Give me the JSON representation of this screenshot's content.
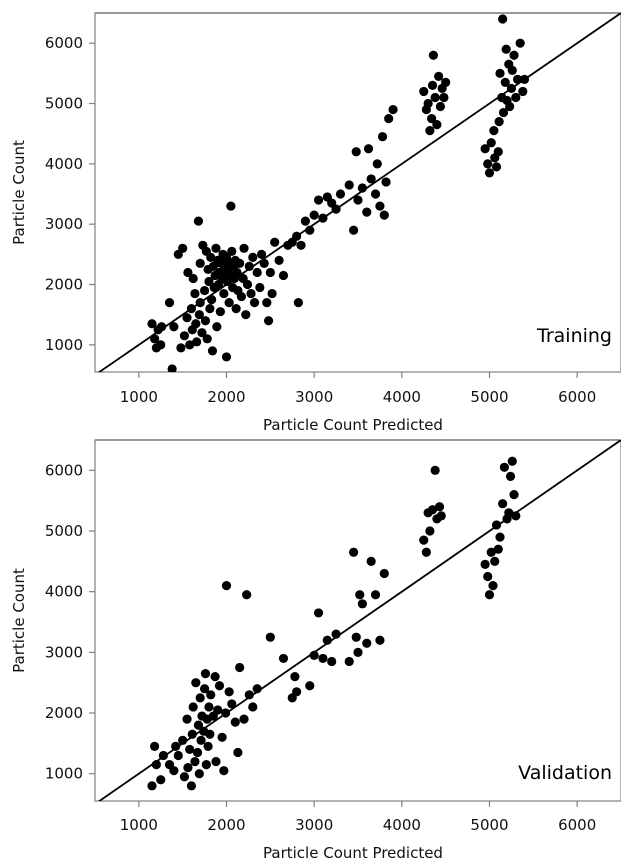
{
  "chart_data": [
    {
      "type": "scatter",
      "panel_label": "Training",
      "xlabel": "Particle Count Predicted",
      "ylabel": "Particle Count",
      "xlim": [
        500,
        6500
      ],
      "ylim": [
        550,
        6500
      ],
      "xticks": [
        1000,
        2000,
        3000,
        4000,
        5000,
        6000
      ],
      "yticks": [
        1000,
        2000,
        3000,
        4000,
        5000,
        6000
      ],
      "reference_line": "y = x",
      "points": [
        [
          1150,
          1350
        ],
        [
          1180,
          1100
        ],
        [
          1200,
          950
        ],
        [
          1220,
          1250
        ],
        [
          1250,
          1000
        ],
        [
          1260,
          1300
        ],
        [
          1350,
          1700
        ],
        [
          1380,
          600
        ],
        [
          1400,
          1300
        ],
        [
          1450,
          2500
        ],
        [
          1480,
          950
        ],
        [
          1500,
          2600
        ],
        [
          1520,
          1150
        ],
        [
          1550,
          1450
        ],
        [
          1560,
          2200
        ],
        [
          1580,
          1000
        ],
        [
          1600,
          1600
        ],
        [
          1610,
          1250
        ],
        [
          1620,
          2100
        ],
        [
          1640,
          1850
        ],
        [
          1650,
          1350
        ],
        [
          1660,
          1050
        ],
        [
          1680,
          3050
        ],
        [
          1690,
          1500
        ],
        [
          1700,
          2350
        ],
        [
          1700,
          1700
        ],
        [
          1720,
          1200
        ],
        [
          1730,
          2650
        ],
        [
          1750,
          1900
        ],
        [
          1760,
          1400
        ],
        [
          1770,
          2550
        ],
        [
          1780,
          1100
        ],
        [
          1790,
          2250
        ],
        [
          1800,
          2050
        ],
        [
          1810,
          1600
        ],
        [
          1820,
          2450
        ],
        [
          1830,
          1750
        ],
        [
          1840,
          900
        ],
        [
          1850,
          2300
        ],
        [
          1860,
          1950
        ],
        [
          1870,
          2150
        ],
        [
          1880,
          2600
        ],
        [
          1890,
          1300
        ],
        [
          1900,
          2400
        ],
        [
          1910,
          2000
        ],
        [
          1920,
          2200
        ],
        [
          1930,
          1550
        ],
        [
          1940,
          2350
        ],
        [
          1950,
          2100
        ],
        [
          1960,
          2500
        ],
        [
          1970,
          1850
        ],
        [
          1980,
          2300
        ],
        [
          1990,
          2150
        ],
        [
          2000,
          2450
        ],
        [
          2000,
          800
        ],
        [
          2010,
          2050
        ],
        [
          2020,
          2250
        ],
        [
          2030,
          1700
        ],
        [
          2040,
          2350
        ],
        [
          2050,
          3300
        ],
        [
          2050,
          2150
        ],
        [
          2060,
          2550
        ],
        [
          2070,
          1950
        ],
        [
          2080,
          2300
        ],
        [
          2090,
          2100
        ],
        [
          2100,
          2400
        ],
        [
          2110,
          1600
        ],
        [
          2120,
          2200
        ],
        [
          2130,
          1900
        ],
        [
          2150,
          2350
        ],
        [
          2170,
          1800
        ],
        [
          2190,
          2100
        ],
        [
          2200,
          2600
        ],
        [
          2220,
          1500
        ],
        [
          2240,
          2000
        ],
        [
          2260,
          2300
        ],
        [
          2280,
          1850
        ],
        [
          2300,
          2450
        ],
        [
          2320,
          1700
        ],
        [
          2350,
          2200
        ],
        [
          2380,
          1950
        ],
        [
          2400,
          2500
        ],
        [
          2430,
          2350
        ],
        [
          2460,
          1700
        ],
        [
          2480,
          1400
        ],
        [
          2500,
          2200
        ],
        [
          2520,
          1850
        ],
        [
          2550,
          2700
        ],
        [
          2600,
          2400
        ],
        [
          2650,
          2150
        ],
        [
          2700,
          2650
        ],
        [
          2750,
          2700
        ],
        [
          2800,
          2800
        ],
        [
          2820,
          1700
        ],
        [
          2850,
          2650
        ],
        [
          2900,
          3050
        ],
        [
          2950,
          2900
        ],
        [
          3000,
          3150
        ],
        [
          3050,
          3400
        ],
        [
          3100,
          3100
        ],
        [
          3150,
          3450
        ],
        [
          3200,
          3350
        ],
        [
          3250,
          3250
        ],
        [
          3300,
          3500
        ],
        [
          3400,
          3650
        ],
        [
          3450,
          2900
        ],
        [
          3480,
          4200
        ],
        [
          3500,
          3400
        ],
        [
          3550,
          3600
        ],
        [
          3600,
          3200
        ],
        [
          3620,
          4250
        ],
        [
          3650,
          3750
        ],
        [
          3700,
          3500
        ],
        [
          3720,
          4000
        ],
        [
          3750,
          3300
        ],
        [
          3780,
          4450
        ],
        [
          3800,
          3150
        ],
        [
          3820,
          3700
        ],
        [
          3850,
          4750
        ],
        [
          3900,
          4900
        ],
        [
          4250,
          5200
        ],
        [
          4280,
          4900
        ],
        [
          4300,
          5000
        ],
        [
          4320,
          4550
        ],
        [
          4340,
          4750
        ],
        [
          4350,
          5300
        ],
        [
          4360,
          5800
        ],
        [
          4380,
          5100
        ],
        [
          4400,
          4650
        ],
        [
          4420,
          5450
        ],
        [
          4440,
          4950
        ],
        [
          4460,
          5250
        ],
        [
          4480,
          5100
        ],
        [
          4500,
          5350
        ],
        [
          4950,
          4250
        ],
        [
          4980,
          4000
        ],
        [
          5000,
          3850
        ],
        [
          5020,
          4350
        ],
        [
          5050,
          4550
        ],
        [
          5060,
          4100
        ],
        [
          5080,
          3950
        ],
        [
          5100,
          4200
        ],
        [
          5110,
          4700
        ],
        [
          5120,
          5500
        ],
        [
          5140,
          5100
        ],
        [
          5150,
          6400
        ],
        [
          5160,
          4850
        ],
        [
          5180,
          5350
        ],
        [
          5190,
          5900
        ],
        [
          5200,
          5050
        ],
        [
          5220,
          5650
        ],
        [
          5230,
          4950
        ],
        [
          5250,
          5250
        ],
        [
          5260,
          5550
        ],
        [
          5280,
          5800
        ],
        [
          5300,
          5100
        ],
        [
          5320,
          5400
        ],
        [
          5350,
          6000
        ],
        [
          5380,
          5200
        ],
        [
          5400,
          5400
        ]
      ]
    },
    {
      "type": "scatter",
      "panel_label": "Validation",
      "xlabel": "Particle Count Predicted",
      "ylabel": "Particle Count",
      "xlim": [
        500,
        6500
      ],
      "ylim": [
        550,
        6500
      ],
      "xticks": [
        1000,
        2000,
        3000,
        4000,
        5000,
        6000
      ],
      "yticks": [
        1000,
        2000,
        3000,
        4000,
        5000,
        6000
      ],
      "reference_line": "y = x",
      "points": [
        [
          1150,
          800
        ],
        [
          1180,
          1450
        ],
        [
          1200,
          1150
        ],
        [
          1250,
          900
        ],
        [
          1280,
          1300
        ],
        [
          1350,
          1150
        ],
        [
          1400,
          1050
        ],
        [
          1420,
          1450
        ],
        [
          1450,
          1300
        ],
        [
          1500,
          1550
        ],
        [
          1520,
          950
        ],
        [
          1550,
          1900
        ],
        [
          1560,
          1100
        ],
        [
          1580,
          1400
        ],
        [
          1600,
          800
        ],
        [
          1610,
          1650
        ],
        [
          1620,
          2100
        ],
        [
          1640,
          1200
        ],
        [
          1650,
          2500
        ],
        [
          1670,
          1350
        ],
        [
          1680,
          1800
        ],
        [
          1690,
          1000
        ],
        [
          1700,
          2250
        ],
        [
          1710,
          1550
        ],
        [
          1720,
          1950
        ],
        [
          1740,
          1700
        ],
        [
          1750,
          2400
        ],
        [
          1760,
          2650
        ],
        [
          1770,
          1150
        ],
        [
          1780,
          1900
        ],
        [
          1790,
          1450
        ],
        [
          1800,
          2100
        ],
        [
          1810,
          1650
        ],
        [
          1820,
          2300
        ],
        [
          1850,
          1950
        ],
        [
          1870,
          2600
        ],
        [
          1880,
          1200
        ],
        [
          1900,
          2050
        ],
        [
          1920,
          2450
        ],
        [
          1950,
          1600
        ],
        [
          1970,
          1050
        ],
        [
          1990,
          2000
        ],
        [
          2000,
          4100
        ],
        [
          2030,
          2350
        ],
        [
          2060,
          2150
        ],
        [
          2100,
          1850
        ],
        [
          2130,
          1350
        ],
        [
          2150,
          2750
        ],
        [
          2200,
          1900
        ],
        [
          2230,
          3950
        ],
        [
          2260,
          2300
        ],
        [
          2300,
          2100
        ],
        [
          2350,
          2400
        ],
        [
          2500,
          3250
        ],
        [
          2650,
          2900
        ],
        [
          2750,
          2250
        ],
        [
          2780,
          2600
        ],
        [
          2800,
          2350
        ],
        [
          2950,
          2450
        ],
        [
          3000,
          2950
        ],
        [
          3050,
          3650
        ],
        [
          3100,
          2900
        ],
        [
          3150,
          3200
        ],
        [
          3200,
          2850
        ],
        [
          3250,
          3300
        ],
        [
          3400,
          2850
        ],
        [
          3450,
          4650
        ],
        [
          3480,
          3250
        ],
        [
          3500,
          3000
        ],
        [
          3520,
          3950
        ],
        [
          3550,
          3800
        ],
        [
          3600,
          3150
        ],
        [
          3650,
          4500
        ],
        [
          3700,
          3950
        ],
        [
          3750,
          3200
        ],
        [
          3800,
          4300
        ],
        [
          4250,
          4850
        ],
        [
          4280,
          4650
        ],
        [
          4300,
          5300
        ],
        [
          4320,
          5000
        ],
        [
          4350,
          5350
        ],
        [
          4380,
          6000
        ],
        [
          4400,
          5200
        ],
        [
          4430,
          5400
        ],
        [
          4450,
          5250
        ],
        [
          4950,
          4450
        ],
        [
          4980,
          4250
        ],
        [
          5000,
          3950
        ],
        [
          5020,
          4650
        ],
        [
          5040,
          4100
        ],
        [
          5060,
          4500
        ],
        [
          5080,
          5100
        ],
        [
          5100,
          4700
        ],
        [
          5120,
          4900
        ],
        [
          5150,
          5450
        ],
        [
          5170,
          6050
        ],
        [
          5200,
          5200
        ],
        [
          5220,
          5300
        ],
        [
          5240,
          5900
        ],
        [
          5260,
          6150
        ],
        [
          5280,
          5600
        ],
        [
          5300,
          5250
        ]
      ]
    }
  ]
}
